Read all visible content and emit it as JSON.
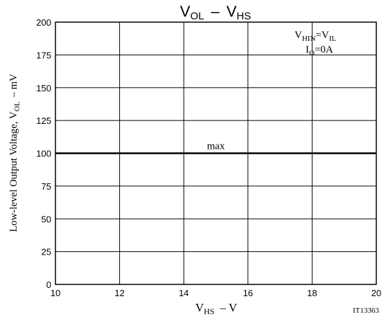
{
  "chart_data": {
    "type": "line",
    "title": {
      "main": "V",
      "sub1": "OL",
      "sep": "–",
      "main2": "V",
      "sub2": "HS"
    },
    "xlabel": {
      "main": "V",
      "sub": "HS",
      "rest": "– V"
    },
    "ylabel": {
      "pre": "Low-level Output Voltage, V",
      "sub": "OL",
      "post": "– mV"
    },
    "xlim": [
      10,
      20
    ],
    "ylim": [
      0,
      200
    ],
    "x_ticks": [
      10,
      12,
      14,
      16,
      18,
      20
    ],
    "y_ticks": [
      0,
      25,
      50,
      75,
      100,
      125,
      150,
      175,
      200
    ],
    "grid": true,
    "series": [
      {
        "name": "max",
        "x": [
          10,
          20
        ],
        "y": [
          100,
          100
        ]
      }
    ],
    "annotations": {
      "cond1": {
        "a": "V",
        "a_sub": "HIN",
        "mid": "=V",
        "b_sub": "IL"
      },
      "cond2": {
        "a": "I",
        "a_sub": "O",
        "rest": "=0A"
      }
    },
    "figure_id": "IT13363"
  }
}
